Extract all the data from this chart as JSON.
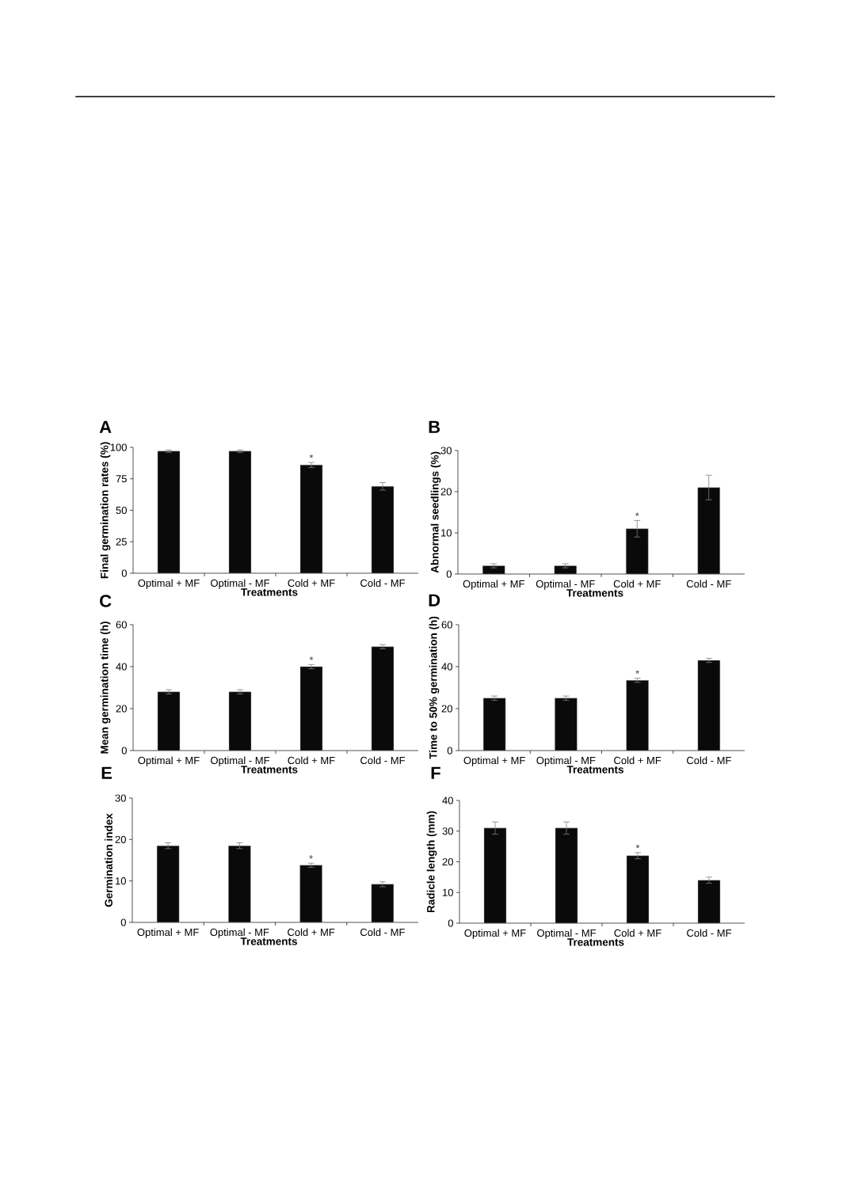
{
  "chart_data": [
    {
      "type": "bar",
      "title": "A",
      "xlabel": "Treatments",
      "ylabel": "Final germination rates (%)",
      "categories": [
        "Optimal + MF",
        "Optimal - MF",
        "Cold + MF",
        "Cold - MF"
      ],
      "values": [
        97,
        97,
        86,
        69
      ],
      "errors": [
        1,
        1,
        2,
        3
      ],
      "color": "#0a0a0a",
      "ylim": [
        0,
        100
      ],
      "yticks": [
        0,
        25,
        50,
        75,
        100
      ],
      "annotations": [
        {
          "text": "*",
          "x": "Cold + MF",
          "y": 88
        }
      ]
    },
    {
      "type": "bar",
      "title": "B",
      "xlabel": "Treatments",
      "ylabel": "Abnormal seedlings (%)",
      "categories": [
        "Optimal + MF",
        "Optimal - MF",
        "Cold + MF",
        "Cold - MF"
      ],
      "values": [
        2,
        2,
        11,
        21
      ],
      "errors": [
        0.5,
        0.5,
        2,
        3
      ],
      "color": "#0a0a0a",
      "ylim": [
        0,
        30
      ],
      "yticks": [
        0,
        10,
        20,
        30
      ],
      "annotations": [
        {
          "text": "*",
          "x": "Cold + MF",
          "y": 13
        }
      ]
    },
    {
      "type": "bar",
      "title": "C",
      "xlabel": "Treatments",
      "ylabel": "Mean germination time (h)",
      "categories": [
        "Optimal + MF",
        "Optimal - MF",
        "Cold + MF",
        "Cold - MF"
      ],
      "values": [
        28,
        28,
        40,
        49.5
      ],
      "errors": [
        1,
        1,
        1,
        1
      ],
      "color": "#0a0a0a",
      "ylim": [
        0,
        60
      ],
      "yticks": [
        0,
        20,
        40,
        60
      ],
      "annotations": [
        {
          "text": "*",
          "x": "Cold + MF",
          "y": 41
        }
      ]
    },
    {
      "type": "bar",
      "title": "D",
      "xlabel": "Treatments",
      "ylabel": "Time to 50% germination (h)",
      "categories": [
        "Optimal + MF",
        "Optimal - MF",
        "Cold + MF",
        "Cold - MF"
      ],
      "values": [
        25,
        25,
        33.5,
        43
      ],
      "errors": [
        1,
        1,
        1,
        1
      ],
      "color": "#0a0a0a",
      "ylim": [
        0,
        60
      ],
      "yticks": [
        0,
        20,
        40,
        60
      ],
      "annotations": [
        {
          "text": "*",
          "x": "Cold + MF",
          "y": 34.5
        }
      ]
    },
    {
      "type": "bar",
      "title": "E",
      "xlabel": "Treatments",
      "ylabel": "Germination index",
      "categories": [
        "Optimal + MF",
        "Optimal - MF",
        "Cold + MF",
        "Cold - MF"
      ],
      "values": [
        18.5,
        18.5,
        13.8,
        9.2
      ],
      "errors": [
        0.7,
        0.7,
        0.5,
        0.6
      ],
      "color": "#0a0a0a",
      "ylim": [
        0,
        30
      ],
      "yticks": [
        0,
        10,
        20,
        30
      ],
      "annotations": [
        {
          "text": "*",
          "x": "Cold + MF",
          "y": 14.3
        }
      ]
    },
    {
      "type": "bar",
      "title": "F",
      "xlabel": "Treatments",
      "ylabel": "Radicle length (mm)",
      "categories": [
        "Optimal + MF",
        "Optimal - MF",
        "Cold + MF",
        "Cold - MF"
      ],
      "values": [
        31,
        31,
        22,
        14
      ],
      "errors": [
        2,
        2,
        1,
        1
      ],
      "color": "#0a0a0a",
      "ylim": [
        0,
        40
      ],
      "yticks": [
        0,
        10,
        20,
        30,
        40
      ],
      "annotations": [
        {
          "text": "*",
          "x": "Cold + MF",
          "y": 23
        }
      ]
    }
  ]
}
